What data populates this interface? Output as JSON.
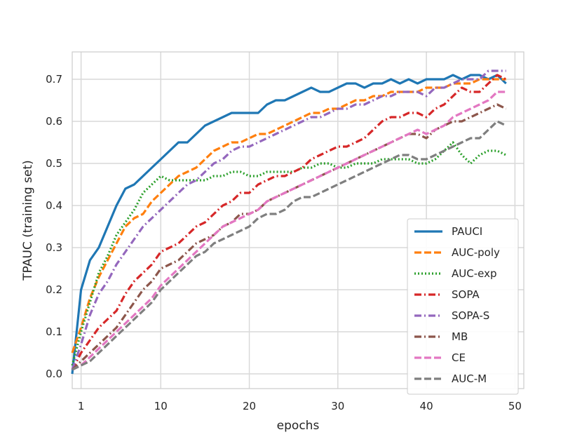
{
  "chart_data": {
    "type": "line",
    "title": "",
    "xlabel": "epochs",
    "ylabel": "TPAUC (training set)",
    "xlim": [
      0,
      51
    ],
    "ylim": [
      -0.035,
      0.765
    ],
    "x_ticks": [
      1,
      10,
      20,
      30,
      40,
      50
    ],
    "x_tick_labels": [
      "1",
      "10",
      "20",
      "30",
      "40",
      "50"
    ],
    "y_ticks": [
      0.0,
      0.1,
      0.2,
      0.3,
      0.4,
      0.5,
      0.6,
      0.7
    ],
    "y_tick_labels": [
      "0.0",
      "0.1",
      "0.2",
      "0.3",
      "0.4",
      "0.5",
      "0.6",
      "0.7"
    ],
    "grid": true,
    "legend_position": "lower-right",
    "series": [
      {
        "name": "PAUCI",
        "color": "#1f77b4",
        "dash": "solid",
        "x": [
          0,
          1,
          2,
          3,
          4,
          5,
          6,
          7,
          8,
          9,
          10,
          11,
          12,
          13,
          14,
          15,
          16,
          17,
          18,
          19,
          20,
          21,
          22,
          23,
          24,
          25,
          26,
          27,
          28,
          29,
          30,
          31,
          32,
          33,
          34,
          35,
          36,
          37,
          38,
          39,
          40,
          41,
          42,
          43,
          44,
          45,
          46,
          47,
          48,
          49
        ],
        "y": [
          0.0,
          0.2,
          0.27,
          0.3,
          0.35,
          0.4,
          0.44,
          0.45,
          0.47,
          0.49,
          0.51,
          0.53,
          0.55,
          0.55,
          0.57,
          0.59,
          0.6,
          0.61,
          0.62,
          0.62,
          0.62,
          0.62,
          0.64,
          0.65,
          0.65,
          0.66,
          0.67,
          0.68,
          0.67,
          0.67,
          0.68,
          0.69,
          0.69,
          0.68,
          0.69,
          0.69,
          0.7,
          0.69,
          0.7,
          0.69,
          0.7,
          0.7,
          0.7,
          0.71,
          0.7,
          0.71,
          0.71,
          0.7,
          0.71,
          0.69
        ]
      },
      {
        "name": "AUC-poly",
        "color": "#ff7f0e",
        "dash": "dashed",
        "x": [
          0,
          1,
          2,
          3,
          4,
          5,
          6,
          7,
          8,
          9,
          10,
          11,
          12,
          13,
          14,
          15,
          16,
          17,
          18,
          19,
          20,
          21,
          22,
          23,
          24,
          25,
          26,
          27,
          28,
          29,
          30,
          31,
          32,
          33,
          34,
          35,
          36,
          37,
          38,
          39,
          40,
          41,
          42,
          43,
          44,
          45,
          46,
          47,
          48,
          49
        ],
        "y": [
          0.05,
          0.11,
          0.18,
          0.23,
          0.27,
          0.31,
          0.35,
          0.37,
          0.38,
          0.41,
          0.43,
          0.45,
          0.47,
          0.48,
          0.49,
          0.51,
          0.53,
          0.54,
          0.55,
          0.55,
          0.56,
          0.57,
          0.57,
          0.58,
          0.59,
          0.6,
          0.61,
          0.62,
          0.62,
          0.63,
          0.63,
          0.64,
          0.65,
          0.65,
          0.66,
          0.66,
          0.67,
          0.67,
          0.67,
          0.67,
          0.68,
          0.68,
          0.68,
          0.69,
          0.69,
          0.69,
          0.7,
          0.7,
          0.7,
          0.7
        ]
      },
      {
        "name": "AUC-exp",
        "color": "#2ca02c",
        "dash": "dotted",
        "x": [
          0,
          1,
          2,
          3,
          4,
          5,
          6,
          7,
          8,
          9,
          10,
          11,
          12,
          13,
          14,
          15,
          16,
          17,
          18,
          19,
          20,
          21,
          22,
          23,
          24,
          25,
          26,
          27,
          28,
          29,
          30,
          31,
          32,
          33,
          34,
          35,
          36,
          37,
          38,
          39,
          40,
          41,
          42,
          43,
          44,
          45,
          46,
          47,
          48,
          49
        ],
        "y": [
          0.02,
          0.1,
          0.17,
          0.24,
          0.28,
          0.33,
          0.36,
          0.39,
          0.43,
          0.45,
          0.47,
          0.46,
          0.46,
          0.46,
          0.46,
          0.46,
          0.47,
          0.47,
          0.48,
          0.48,
          0.47,
          0.47,
          0.48,
          0.48,
          0.48,
          0.48,
          0.49,
          0.49,
          0.5,
          0.5,
          0.49,
          0.49,
          0.5,
          0.5,
          0.5,
          0.51,
          0.51,
          0.51,
          0.51,
          0.5,
          0.5,
          0.51,
          0.53,
          0.55,
          0.52,
          0.5,
          0.52,
          0.53,
          0.53,
          0.52
        ]
      },
      {
        "name": "SOPA",
        "color": "#d62728",
        "dash": "dashdot",
        "x": [
          0,
          1,
          2,
          3,
          4,
          5,
          6,
          7,
          8,
          9,
          10,
          11,
          12,
          13,
          14,
          15,
          16,
          17,
          18,
          19,
          20,
          21,
          22,
          23,
          24,
          25,
          26,
          27,
          28,
          29,
          30,
          31,
          32,
          33,
          34,
          35,
          36,
          37,
          38,
          39,
          40,
          41,
          42,
          43,
          44,
          45,
          46,
          47,
          48,
          49
        ],
        "y": [
          0.01,
          0.05,
          0.08,
          0.11,
          0.13,
          0.15,
          0.19,
          0.22,
          0.24,
          0.26,
          0.29,
          0.3,
          0.31,
          0.33,
          0.35,
          0.36,
          0.38,
          0.4,
          0.41,
          0.43,
          0.43,
          0.45,
          0.46,
          0.47,
          0.47,
          0.48,
          0.49,
          0.51,
          0.52,
          0.53,
          0.54,
          0.54,
          0.55,
          0.56,
          0.58,
          0.6,
          0.61,
          0.61,
          0.62,
          0.62,
          0.61,
          0.63,
          0.64,
          0.66,
          0.68,
          0.67,
          0.67,
          0.69,
          0.71,
          0.7
        ]
      },
      {
        "name": "SOPA-S",
        "color": "#9467bd",
        "dash": "dashdot",
        "x": [
          0,
          1,
          2,
          3,
          4,
          5,
          6,
          7,
          8,
          9,
          10,
          11,
          12,
          13,
          14,
          15,
          16,
          17,
          18,
          19,
          20,
          21,
          22,
          23,
          24,
          25,
          26,
          27,
          28,
          29,
          30,
          31,
          32,
          33,
          34,
          35,
          36,
          37,
          38,
          39,
          40,
          41,
          42,
          43,
          44,
          45,
          46,
          47,
          48,
          49
        ],
        "y": [
          0.01,
          0.07,
          0.14,
          0.19,
          0.22,
          0.26,
          0.29,
          0.32,
          0.35,
          0.37,
          0.39,
          0.41,
          0.43,
          0.45,
          0.46,
          0.48,
          0.5,
          0.51,
          0.53,
          0.54,
          0.54,
          0.55,
          0.56,
          0.57,
          0.58,
          0.59,
          0.6,
          0.61,
          0.61,
          0.62,
          0.63,
          0.63,
          0.64,
          0.64,
          0.65,
          0.66,
          0.66,
          0.67,
          0.67,
          0.67,
          0.66,
          0.68,
          0.68,
          0.69,
          0.7,
          0.7,
          0.7,
          0.72,
          0.72,
          0.72
        ]
      },
      {
        "name": "MB",
        "color": "#8c564b",
        "dash": "dashdot",
        "x": [
          0,
          1,
          2,
          3,
          4,
          5,
          6,
          7,
          8,
          9,
          10,
          11,
          12,
          13,
          14,
          15,
          16,
          17,
          18,
          19,
          20,
          21,
          22,
          23,
          24,
          25,
          26,
          27,
          28,
          29,
          30,
          31,
          32,
          33,
          34,
          35,
          36,
          37,
          38,
          39,
          40,
          41,
          42,
          43,
          44,
          45,
          46,
          47,
          48,
          49
        ],
        "y": [
          0.01,
          0.03,
          0.05,
          0.07,
          0.09,
          0.11,
          0.14,
          0.17,
          0.2,
          0.22,
          0.25,
          0.26,
          0.27,
          0.29,
          0.31,
          0.32,
          0.33,
          0.35,
          0.36,
          0.38,
          0.38,
          0.39,
          0.41,
          0.42,
          0.43,
          0.44,
          0.45,
          0.46,
          0.47,
          0.48,
          0.49,
          0.5,
          0.51,
          0.52,
          0.53,
          0.54,
          0.55,
          0.56,
          0.57,
          0.57,
          0.56,
          0.58,
          0.59,
          0.6,
          0.6,
          0.61,
          0.62,
          0.63,
          0.64,
          0.63
        ]
      },
      {
        "name": "CE",
        "color": "#e377c2",
        "dash": "dashed",
        "x": [
          0,
          1,
          2,
          3,
          4,
          5,
          6,
          7,
          8,
          9,
          10,
          11,
          12,
          13,
          14,
          15,
          16,
          17,
          18,
          19,
          20,
          21,
          22,
          23,
          24,
          25,
          26,
          27,
          28,
          29,
          30,
          31,
          32,
          33,
          34,
          35,
          36,
          37,
          38,
          39,
          40,
          41,
          42,
          43,
          44,
          45,
          46,
          47,
          48,
          49
        ],
        "y": [
          0.01,
          0.02,
          0.04,
          0.06,
          0.08,
          0.1,
          0.12,
          0.14,
          0.16,
          0.18,
          0.21,
          0.23,
          0.25,
          0.27,
          0.29,
          0.31,
          0.33,
          0.35,
          0.36,
          0.37,
          0.38,
          0.39,
          0.41,
          0.42,
          0.43,
          0.44,
          0.45,
          0.46,
          0.47,
          0.48,
          0.49,
          0.5,
          0.51,
          0.52,
          0.53,
          0.54,
          0.55,
          0.56,
          0.57,
          0.58,
          0.57,
          0.58,
          0.59,
          0.61,
          0.62,
          0.63,
          0.64,
          0.65,
          0.67,
          0.67
        ]
      },
      {
        "name": "AUC-M",
        "color": "#7f7f7f",
        "dash": "dashed",
        "x": [
          0,
          1,
          2,
          3,
          4,
          5,
          6,
          7,
          8,
          9,
          10,
          11,
          12,
          13,
          14,
          15,
          16,
          17,
          18,
          19,
          20,
          21,
          22,
          23,
          24,
          25,
          26,
          27,
          28,
          29,
          30,
          31,
          32,
          33,
          34,
          35,
          36,
          37,
          38,
          39,
          40,
          41,
          42,
          43,
          44,
          45,
          46,
          47,
          48,
          49
        ],
        "y": [
          0.01,
          0.02,
          0.03,
          0.05,
          0.07,
          0.09,
          0.11,
          0.13,
          0.15,
          0.17,
          0.2,
          0.22,
          0.24,
          0.26,
          0.28,
          0.29,
          0.31,
          0.32,
          0.33,
          0.34,
          0.35,
          0.37,
          0.38,
          0.38,
          0.39,
          0.41,
          0.42,
          0.42,
          0.43,
          0.44,
          0.45,
          0.46,
          0.47,
          0.48,
          0.49,
          0.5,
          0.51,
          0.52,
          0.52,
          0.51,
          0.51,
          0.52,
          0.53,
          0.54,
          0.55,
          0.56,
          0.56,
          0.58,
          0.6,
          0.59
        ]
      }
    ]
  }
}
